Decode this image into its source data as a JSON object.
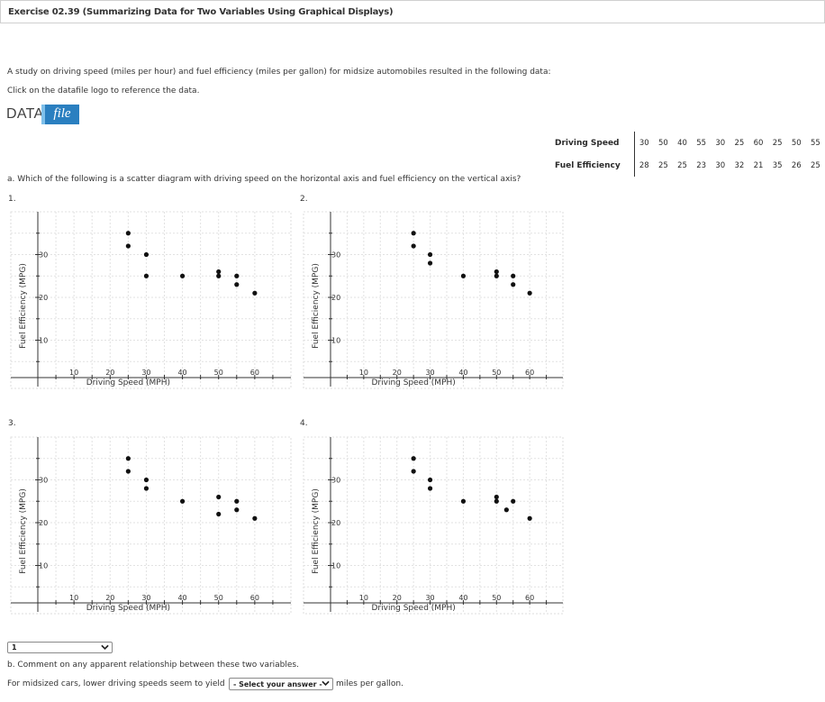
{
  "header": {
    "title": "Exercise 02.39 (Summarizing Data for Two Variables Using Graphical Displays)"
  },
  "intro": {
    "text": "A study on driving speed (miles per hour) and fuel efficiency (miles per gallon) for midsize automobiles resulted in the following data:",
    "click_text": "Click on the datafile logo to reference the data."
  },
  "logo": {
    "data": "DATA",
    "file": "file"
  },
  "table": {
    "row1_label": "Driving Speed",
    "row2_label": "Fuel Efficiency",
    "speeds": [
      "30",
      "50",
      "40",
      "55",
      "30",
      "25",
      "60",
      "25",
      "50",
      "55"
    ],
    "efficiency": [
      "28",
      "25",
      "25",
      "23",
      "30",
      "32",
      "21",
      "35",
      "26",
      "25"
    ]
  },
  "question_a": "a. Which of the following is a scatter diagram with driving speed on the horizontal axis and fuel efficiency on the vertical axis?",
  "options": [
    "1.",
    "2.",
    "3.",
    "4."
  ],
  "answer_select": {
    "value": "1"
  },
  "question_b": "b. Comment on any apparent relationship between these two variables.",
  "sentence": {
    "before": "For midsized cars, lower driving speeds seem to yield",
    "after": "miles per gallon."
  },
  "answer_select_b": {
    "value": "- Select your answer -"
  },
  "chart_data": [
    {
      "type": "scatter",
      "option": "1",
      "xlabel": "Driving  Speed  (MPH)",
      "ylabel": "Fuel  Efficiency  (MPG)",
      "xticks": [
        10,
        20,
        30,
        40,
        50,
        60
      ],
      "yticks": [
        10,
        20,
        30
      ],
      "xlim": [
        0,
        70
      ],
      "ylim": [
        0,
        40
      ],
      "points": [
        [
          25,
          35
        ],
        [
          25,
          32
        ],
        [
          30,
          30
        ],
        [
          30,
          25
        ],
        [
          40,
          25
        ],
        [
          50,
          26
        ],
        [
          50,
          25
        ],
        [
          55,
          25
        ],
        [
          55,
          23
        ],
        [
          60,
          21
        ]
      ]
    },
    {
      "type": "scatter",
      "option": "2",
      "xlabel": "Driving  Speed  (MPH)",
      "ylabel": "Fuel  Efficiency  (MPG)",
      "xticks": [
        10,
        20,
        30,
        40,
        50,
        60
      ],
      "yticks": [
        10,
        20,
        30
      ],
      "xlim": [
        0,
        70
      ],
      "ylim": [
        0,
        40
      ],
      "points": [
        [
          25,
          35
        ],
        [
          25,
          32
        ],
        [
          30,
          30
        ],
        [
          30,
          28
        ],
        [
          40,
          25
        ],
        [
          50,
          26
        ],
        [
          50,
          25
        ],
        [
          55,
          25
        ],
        [
          55,
          23
        ],
        [
          60,
          21
        ]
      ]
    },
    {
      "type": "scatter",
      "option": "3",
      "xlabel": "Driving  Speed  (MPH)",
      "ylabel": "Fuel  Efficiency  (MPG)",
      "xticks": [
        10,
        20,
        30,
        40,
        50,
        60
      ],
      "yticks": [
        10,
        20,
        30
      ],
      "xlim": [
        0,
        70
      ],
      "ylim": [
        0,
        40
      ],
      "points": [
        [
          25,
          35
        ],
        [
          25,
          32
        ],
        [
          30,
          30
        ],
        [
          30,
          28
        ],
        [
          40,
          25
        ],
        [
          50,
          26
        ],
        [
          50,
          22
        ],
        [
          55,
          25
        ],
        [
          55,
          23
        ],
        [
          60,
          21
        ]
      ]
    },
    {
      "type": "scatter",
      "option": "4",
      "xlabel": "Driving  Speed  (MPH)",
      "ylabel": "Fuel  Efficiency  (MPG)",
      "xticks": [
        10,
        20,
        30,
        40,
        50,
        60
      ],
      "yticks": [
        10,
        20,
        30
      ],
      "xlim": [
        0,
        70
      ],
      "ylim": [
        0,
        40
      ],
      "points": [
        [
          25,
          35
        ],
        [
          25,
          32
        ],
        [
          30,
          30
        ],
        [
          30,
          28
        ],
        [
          40,
          25
        ],
        [
          50,
          26
        ],
        [
          50,
          25
        ],
        [
          53,
          23
        ],
        [
          55,
          25
        ],
        [
          60,
          21
        ]
      ]
    }
  ]
}
